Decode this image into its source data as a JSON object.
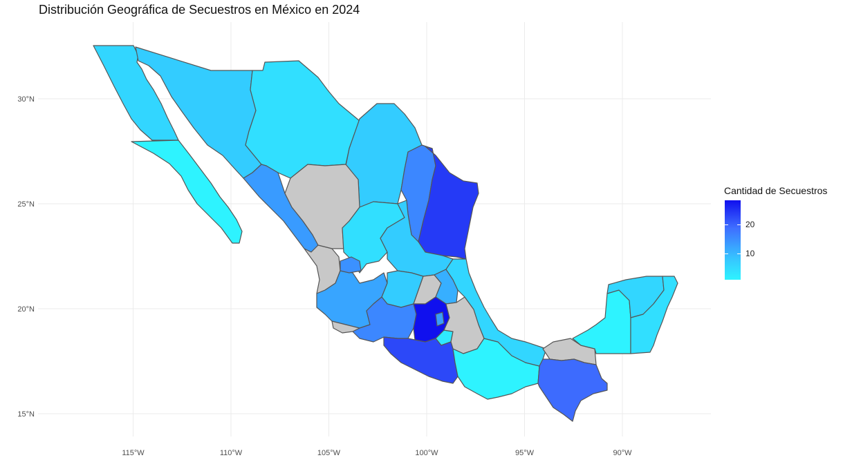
{
  "title": "Distribución Geográfica de Secuestros en México en 2024",
  "legend": {
    "title": "Cantidad de Secuestros",
    "ticks": [
      "20",
      "10"
    ],
    "colors": {
      "high": "#1010ee",
      "mid": "#3f6fff",
      "low": "#2ef3ff",
      "missing": "#c8c8c8"
    }
  },
  "axes": {
    "x_ticks": [
      "115°W",
      "110°W",
      "105°W",
      "100°W",
      "95°W",
      "90°W"
    ],
    "y_ticks": [
      "30°N",
      "25°N",
      "20°N",
      "15°N"
    ]
  },
  "chart_data": {
    "type": "choropleth",
    "fill_variable": "Cantidad de Secuestros",
    "legend_placement": "right",
    "grid": true,
    "xlim": [
      -119,
      -86
    ],
    "ylim": [
      14,
      33
    ],
    "value_range": [
      1,
      28
    ],
    "regions": [
      {
        "name": "Baja California",
        "value": 4
      },
      {
        "name": "Baja California Sur",
        "value": 1
      },
      {
        "name": "Sonora",
        "value": 5
      },
      {
        "name": "Chihuahua",
        "value": 3
      },
      {
        "name": "Coahuila",
        "value": 5
      },
      {
        "name": "Nuevo León",
        "value": 12
      },
      {
        "name": "Tamaulipas",
        "value": 22
      },
      {
        "name": "Sinaloa",
        "value": 10
      },
      {
        "name": "Durango",
        "value": null
      },
      {
        "name": "Zacatecas",
        "value": 3
      },
      {
        "name": "San Luis Potosí",
        "value": 5
      },
      {
        "name": "Nayarit",
        "value": null
      },
      {
        "name": "Jalisco",
        "value": 9
      },
      {
        "name": "Aguascalientes",
        "value": 11
      },
      {
        "name": "Guanajuato",
        "value": 5
      },
      {
        "name": "Querétaro",
        "value": null
      },
      {
        "name": "Hidalgo",
        "value": 8
      },
      {
        "name": "Michoacán",
        "value": 12
      },
      {
        "name": "Colima",
        "value": null
      },
      {
        "name": "Estado de México",
        "value": 28
      },
      {
        "name": "Ciudad de México",
        "value": 10
      },
      {
        "name": "Morelos",
        "value": 2
      },
      {
        "name": "Tlaxcala",
        "value": 2
      },
      {
        "name": "Puebla",
        "value": null
      },
      {
        "name": "Guerrero",
        "value": 20
      },
      {
        "name": "Oaxaca",
        "value": 1
      },
      {
        "name": "Veracruz",
        "value": 4
      },
      {
        "name": "Tabasco",
        "value": null
      },
      {
        "name": "Chiapas",
        "value": 15
      },
      {
        "name": "Campeche",
        "value": 1
      },
      {
        "name": "Yucatán",
        "value": 4
      },
      {
        "name": "Quintana Roo",
        "value": 3
      }
    ]
  }
}
